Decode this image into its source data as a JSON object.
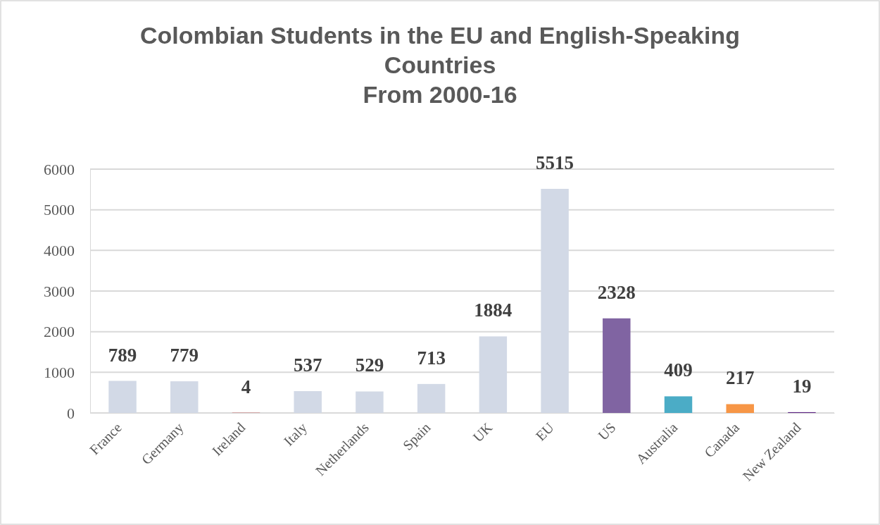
{
  "chart_data": {
    "type": "bar",
    "title": "Colombian Students in the EU and English-Speaking Countries",
    "subtitle": "From 2000-16",
    "categories": [
      "France",
      "Germany",
      "Ireland",
      "Italy",
      "Netherlands",
      "Spain",
      "UK",
      "EU",
      "US",
      "Australia",
      "Canada",
      "New Zealand"
    ],
    "values": [
      789,
      779,
      4,
      537,
      529,
      713,
      1884,
      5515,
      2328,
      409,
      217,
      19
    ],
    "colors": [
      "#d2d9e6",
      "#d2d9e6",
      "#c00000",
      "#d2d9e6",
      "#d2d9e6",
      "#d2d9e6",
      "#d2d9e6",
      "#d2d9e6",
      "#8064a2",
      "#4bacc6",
      "#f79646",
      "#5b2382"
    ],
    "ylim": [
      0,
      6000
    ],
    "yticks": [
      0,
      1000,
      2000,
      3000,
      4000,
      5000,
      6000
    ],
    "grid": true,
    "data_labels": true
  }
}
